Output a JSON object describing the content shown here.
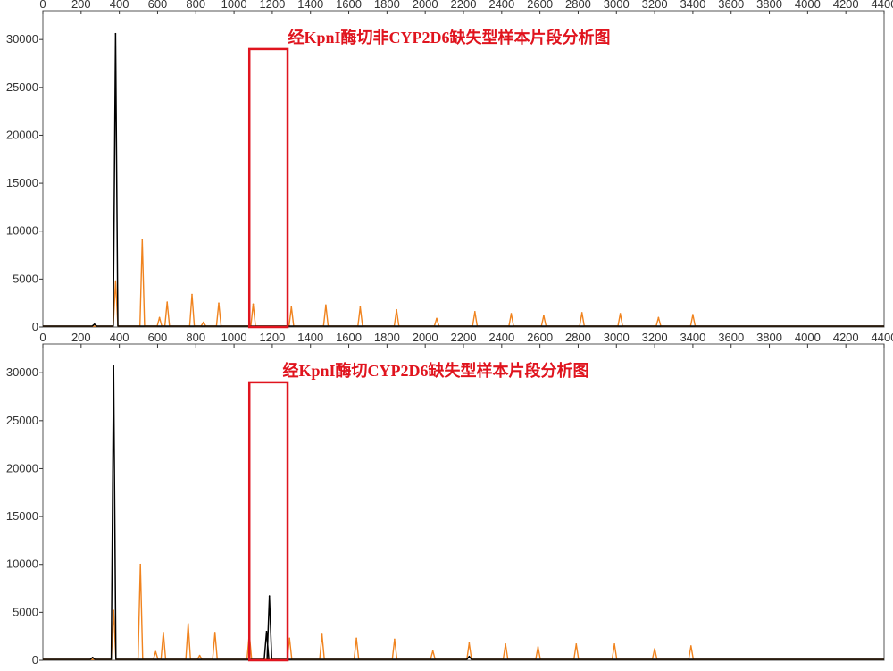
{
  "colors": {
    "ladder": "#f0831e",
    "sample": "#000000",
    "highlight": "#e0141e",
    "title": "#e0141e",
    "axis": "#333333"
  },
  "chart_data": [
    {
      "type": "line",
      "title": "经KpnI酶切非CYP2D6缺失型样本片段分析图",
      "xlabel": "",
      "ylabel": "",
      "xlim": [
        0,
        4400
      ],
      "ylim": [
        0,
        33000
      ],
      "x_ticks": [
        0,
        200,
        400,
        600,
        800,
        1000,
        1200,
        1400,
        1600,
        1800,
        2000,
        2200,
        2400,
        2600,
        2800,
        3000,
        3200,
        3400,
        3600,
        3800,
        4000,
        4200,
        4400
      ],
      "x_ticks_position": "top",
      "y_ticks": [
        0,
        5000,
        10000,
        15000,
        20000,
        25000,
        30000
      ],
      "grid": false,
      "legend": "none",
      "highlight_box": {
        "x_range": [
          1080,
          1280
        ],
        "y_range": [
          0,
          29000
        ]
      },
      "series": [
        {
          "role": "size-standard",
          "color": "#f0831e",
          "peaks": [
            {
              "x": 380,
              "y": 4800
            },
            {
              "x": 520,
              "y": 9100
            },
            {
              "x": 610,
              "y": 1000
            },
            {
              "x": 650,
              "y": 2600
            },
            {
              "x": 780,
              "y": 3400
            },
            {
              "x": 840,
              "y": 500
            },
            {
              "x": 920,
              "y": 2500
            },
            {
              "x": 1100,
              "y": 2400
            },
            {
              "x": 1300,
              "y": 2100
            },
            {
              "x": 1480,
              "y": 2300
            },
            {
              "x": 1660,
              "y": 2100
            },
            {
              "x": 1850,
              "y": 1800
            },
            {
              "x": 2060,
              "y": 900
            },
            {
              "x": 2260,
              "y": 1600
            },
            {
              "x": 2450,
              "y": 1400
            },
            {
              "x": 2620,
              "y": 1200
            },
            {
              "x": 2820,
              "y": 1500
            },
            {
              "x": 3020,
              "y": 1400
            },
            {
              "x": 3220,
              "y": 1000
            },
            {
              "x": 3400,
              "y": 1300
            }
          ]
        },
        {
          "role": "sample",
          "color": "#000000",
          "peaks": [
            {
              "x": 270,
              "y": 300
            },
            {
              "x": 380,
              "y": 30600
            }
          ]
        }
      ]
    },
    {
      "type": "line",
      "title": "经KpnI酶切CYP2D6缺失型样本片段分析图",
      "xlabel": "",
      "ylabel": "",
      "xlim": [
        0,
        4400
      ],
      "ylim": [
        0,
        33000
      ],
      "x_ticks": [
        0,
        200,
        400,
        600,
        800,
        1000,
        1200,
        1400,
        1600,
        1800,
        2000,
        2200,
        2400,
        2600,
        2800,
        3000,
        3200,
        3400,
        3600,
        3800,
        4000,
        4200,
        4400
      ],
      "x_ticks_position": "top",
      "y_ticks": [
        0,
        5000,
        10000,
        15000,
        20000,
        25000,
        30000
      ],
      "grid": false,
      "legend": "none",
      "highlight_box": {
        "x_range": [
          1080,
          1280
        ],
        "y_range": [
          0,
          29000
        ]
      },
      "series": [
        {
          "role": "size-standard",
          "color": "#f0831e",
          "peaks": [
            {
              "x": 370,
              "y": 5200
            },
            {
              "x": 510,
              "y": 10000
            },
            {
              "x": 590,
              "y": 900
            },
            {
              "x": 630,
              "y": 2900
            },
            {
              "x": 760,
              "y": 3800
            },
            {
              "x": 820,
              "y": 500
            },
            {
              "x": 900,
              "y": 2900
            },
            {
              "x": 1080,
              "y": 2800
            },
            {
              "x": 1290,
              "y": 2300
            },
            {
              "x": 1460,
              "y": 2700
            },
            {
              "x": 1640,
              "y": 2300
            },
            {
              "x": 1840,
              "y": 2200
            },
            {
              "x": 2040,
              "y": 1000
            },
            {
              "x": 2230,
              "y": 1800
            },
            {
              "x": 2420,
              "y": 1700
            },
            {
              "x": 2590,
              "y": 1400
            },
            {
              "x": 2790,
              "y": 1700
            },
            {
              "x": 2990,
              "y": 1700
            },
            {
              "x": 3200,
              "y": 1200
            },
            {
              "x": 3390,
              "y": 1500
            }
          ]
        },
        {
          "role": "sample",
          "color": "#000000",
          "peaks": [
            {
              "x": 260,
              "y": 300
            },
            {
              "x": 370,
              "y": 30700
            },
            {
              "x": 1170,
              "y": 3000
            },
            {
              "x": 1185,
              "y": 6700
            },
            {
              "x": 2230,
              "y": 400
            }
          ]
        }
      ]
    }
  ]
}
